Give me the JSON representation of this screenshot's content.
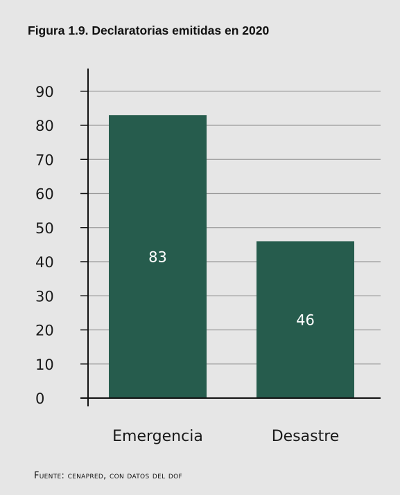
{
  "title": "Figura 1.9. Declaratorias emitidas en 2020",
  "source": "Fuente: cenapred, con datos del dof",
  "colors": {
    "background": "#e6e6e6",
    "bar": "#265c4d",
    "gridline": "#9a9a9a",
    "axis": "#111111",
    "bar_label": "#ffffff"
  },
  "chart_data": {
    "type": "bar",
    "title": "Figura 1.9. Declaratorias emitidas en 2020",
    "xlabel": "",
    "ylabel": "",
    "categories": [
      "Emergencia",
      "Desastre"
    ],
    "values": [
      83,
      46
    ],
    "data_labels": [
      "83",
      "46"
    ],
    "ylim": [
      0,
      90
    ],
    "yticks": [
      0,
      10,
      20,
      30,
      40,
      50,
      60,
      70,
      80,
      90
    ],
    "grid": true,
    "legend": "none"
  }
}
